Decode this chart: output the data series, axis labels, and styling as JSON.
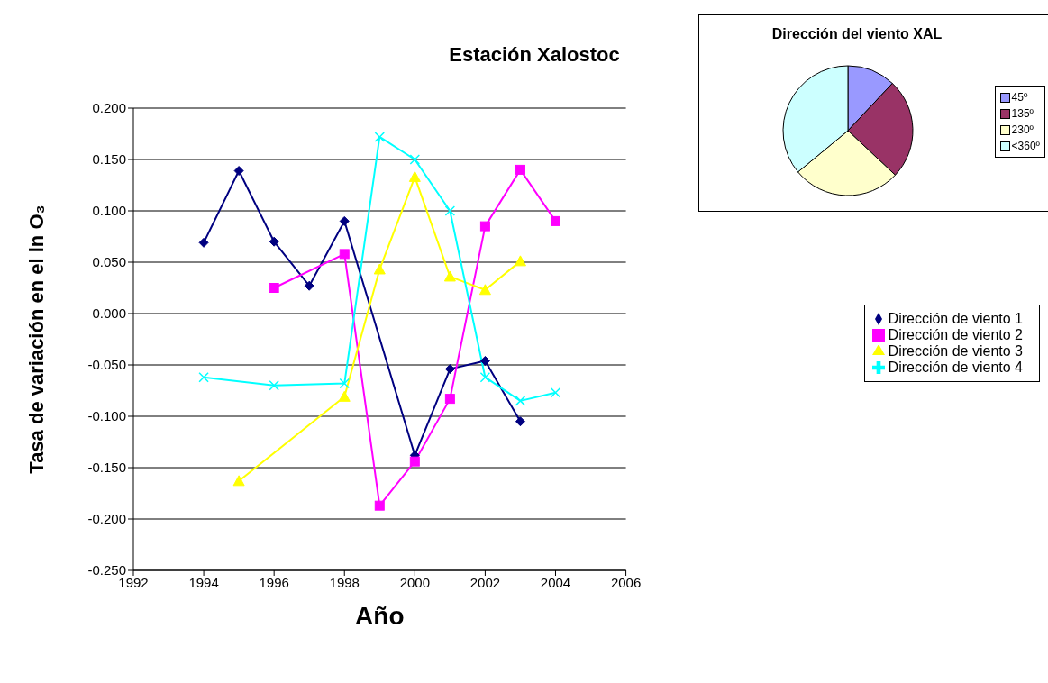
{
  "chart_data": [
    {
      "type": "line",
      "title": "Estación Xalostoc",
      "xlabel": "Año",
      "ylabel": "Tasa de variación en el ln O₃",
      "xlim": [
        1992,
        2006
      ],
      "xticks": [
        1992,
        1994,
        1996,
        1998,
        2000,
        2002,
        2004,
        2006
      ],
      "ylim": [
        -0.25,
        0.2
      ],
      "yticks": [
        {
          "value": 0.2,
          "label": "0.200"
        },
        {
          "value": 0.15,
          "label": "0.150"
        },
        {
          "value": 0.1,
          "label": "0.100"
        },
        {
          "value": 0.05,
          "label": "0.050"
        },
        {
          "value": 0,
          "label": "0.000"
        },
        {
          "value": -0.05,
          "label": "-0.050"
        },
        {
          "value": -0.1,
          "label": "-0.100"
        },
        {
          "value": -0.15,
          "label": "-0.150"
        },
        {
          "value": -0.2,
          "label": "-0.200"
        },
        {
          "value": -0.25,
          "label": "-0.250"
        }
      ],
      "grid": "y",
      "legend": "right",
      "series": [
        {
          "name": "Dirección de viento 1",
          "color": "#000080",
          "marker": "diamond",
          "x": [
            1994,
            1995,
            1996,
            1997,
            1998,
            2000,
            2001,
            2002,
            2003
          ],
          "values": [
            0.069,
            0.139,
            0.07,
            0.027,
            0.09,
            -0.138,
            -0.054,
            -0.046,
            -0.105
          ]
        },
        {
          "name": "Dirección de viento 2",
          "color": "#ff00ff",
          "marker": "square",
          "x": [
            1996,
            1998,
            1999,
            2000,
            2001,
            2002,
            2003,
            2004
          ],
          "values": [
            0.025,
            0.058,
            -0.187,
            -0.144,
            -0.083,
            0.085,
            0.14,
            0.09
          ]
        },
        {
          "name": "Dirección de viento 3",
          "color": "#ffff00",
          "marker": "triangle",
          "x": [
            1995,
            1998,
            1999,
            2000,
            2001,
            2002,
            2003
          ],
          "values": [
            -0.163,
            -0.081,
            0.043,
            0.133,
            0.036,
            0.023,
            0.051
          ]
        },
        {
          "name": "Dirección de viento 4",
          "color": "#00ffff",
          "marker": "cross",
          "x": [
            1994,
            1996,
            1998,
            1999,
            2000,
            2001,
            2002,
            2003,
            2004
          ],
          "values": [
            -0.062,
            -0.07,
            -0.068,
            0.172,
            0.15,
            0.1,
            -0.062,
            -0.085,
            -0.077
          ]
        }
      ]
    },
    {
      "type": "pie",
      "title": "Dirección del viento XAL",
      "legend": "right",
      "categories": [
        "45º",
        "135º",
        "230º",
        "<360º"
      ],
      "values": [
        12,
        25,
        27,
        36
      ],
      "colors": [
        "#9999ff",
        "#993366",
        "#ffffcc",
        "#ccffff"
      ]
    }
  ]
}
